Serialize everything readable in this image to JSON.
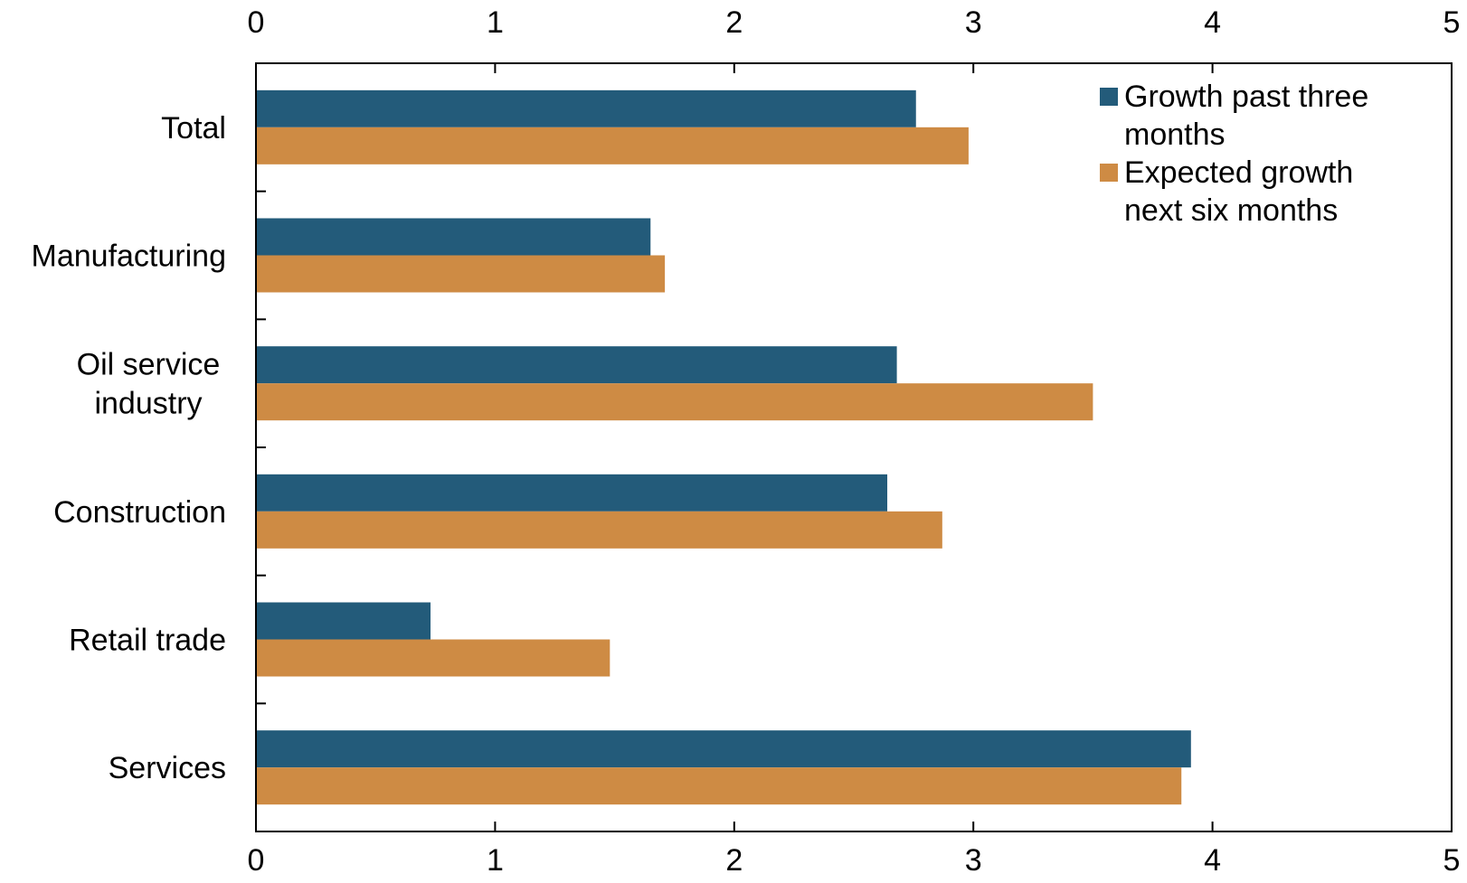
{
  "chart_data": {
    "type": "bar",
    "orientation": "horizontal",
    "categories": [
      [
        "Total"
      ],
      [
        "Manufacturing"
      ],
      [
        "Oil service",
        "industry"
      ],
      [
        "Construction"
      ],
      [
        "Retail trade"
      ],
      [
        "Services"
      ]
    ],
    "series": [
      {
        "name_lines": [
          "Growth past three",
          "months"
        ],
        "color": "#235B7A",
        "values": [
          2.76,
          1.65,
          2.68,
          2.64,
          0.73,
          3.91
        ]
      },
      {
        "name_lines": [
          "Expected growth",
          "next six months"
        ],
        "color": "#CE8B44",
        "values": [
          2.98,
          1.71,
          3.5,
          2.87,
          1.48,
          3.87
        ]
      }
    ],
    "xlim": [
      0,
      5
    ],
    "xticks": [
      "0",
      "1",
      "2",
      "3",
      "4",
      "5"
    ],
    "title": "",
    "xlabel": "",
    "ylabel": "",
    "grid": false,
    "legend_position": "top-right",
    "axis_ticks_top_and_bottom": true
  }
}
